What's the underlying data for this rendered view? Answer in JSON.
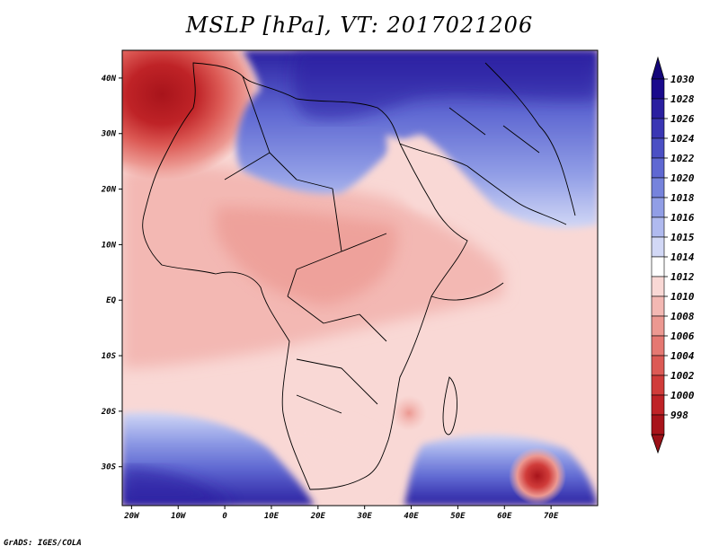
{
  "title": "MSLP [hPa], VT: 2017021206",
  "credit": "GrADS: IGES/COLA",
  "map": {
    "projection": "lat-lon",
    "lon_range": [
      -22,
      80
    ],
    "lat_range": [
      -37,
      45
    ],
    "lat_ticks": [
      {
        "label": "40N",
        "value": 40
      },
      {
        "label": "30N",
        "value": 30
      },
      {
        "label": "20N",
        "value": 20
      },
      {
        "label": "10N",
        "value": 10
      },
      {
        "label": "EQ",
        "value": 0
      },
      {
        "label": "10S",
        "value": -10
      },
      {
        "label": "20S",
        "value": -20
      },
      {
        "label": "30S",
        "value": -30
      }
    ],
    "lon_ticks": [
      {
        "label": "20W",
        "value": -20
      },
      {
        "label": "10W",
        "value": -10
      },
      {
        "label": "0",
        "value": 0
      },
      {
        "label": "10E",
        "value": 10
      },
      {
        "label": "20E",
        "value": 20
      },
      {
        "label": "30E",
        "value": 30
      },
      {
        "label": "40E",
        "value": 40
      },
      {
        "label": "50E",
        "value": 50
      },
      {
        "label": "60E",
        "value": 60
      },
      {
        "label": "70E",
        "value": 70
      }
    ]
  },
  "colorbar": {
    "levels": [
      {
        "label": "1030",
        "color": "#1a0a8c"
      },
      {
        "label": "1028",
        "color": "#2a1fa0"
      },
      {
        "label": "1026",
        "color": "#3a36b4"
      },
      {
        "label": "1024",
        "color": "#4b4fc4"
      },
      {
        "label": "1022",
        "color": "#5f68d2"
      },
      {
        "label": "1020",
        "color": "#7683dc"
      },
      {
        "label": "1018",
        "color": "#919ee6"
      },
      {
        "label": "1016",
        "color": "#b0baef"
      },
      {
        "label": "1015",
        "color": "#d2d8f6"
      },
      {
        "label": "1014",
        "color": "#ffffff"
      },
      {
        "label": "1012",
        "color": "#f9d8d5"
      },
      {
        "label": "1010",
        "color": "#f3b8b3"
      },
      {
        "label": "1008",
        "color": "#ec9891"
      },
      {
        "label": "1006",
        "color": "#e57872"
      },
      {
        "label": "1004",
        "color": "#dc5a55"
      },
      {
        "label": "1002",
        "color": "#d03c3a"
      },
      {
        "label": "1000",
        "color": "#bf2327"
      },
      {
        "label": "998",
        "color": "#a8141b"
      }
    ],
    "top_color": "#14067a",
    "bottom_color": "#9c1118"
  }
}
